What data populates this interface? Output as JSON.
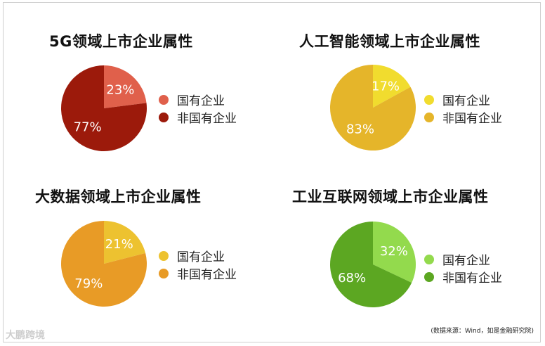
{
  "chart_data": [
    {
      "type": "pie",
      "title": "5G领域上市企业属性",
      "labels": [
        "国有企业",
        "非国有企业"
      ],
      "values": [
        23,
        77
      ],
      "value_labels": [
        "23%",
        "77%"
      ],
      "colors": [
        "#E0604B",
        "#9C1A0B"
      ],
      "legend_position": "right"
    },
    {
      "type": "pie",
      "title": "人工智能领域上市企业属性",
      "labels": [
        "国有企业",
        "非国有企业"
      ],
      "values": [
        17,
        83
      ],
      "value_labels": [
        "17%",
        "83%"
      ],
      "colors": [
        "#F1DC2E",
        "#E5B52A"
      ],
      "legend_position": "right"
    },
    {
      "type": "pie",
      "title": "大数据领域上市企业属性",
      "labels": [
        "国有企业",
        "非国有企业"
      ],
      "values": [
        21,
        79
      ],
      "value_labels": [
        "21%",
        "79%"
      ],
      "colors": [
        "#EDC230",
        "#E89B26"
      ],
      "legend_position": "right"
    },
    {
      "type": "pie",
      "title": "工业互联网领域上市企业属性",
      "labels": [
        "国有企业",
        "非国有企业"
      ],
      "values": [
        32,
        68
      ],
      "value_labels": [
        "32%",
        "68%"
      ],
      "colors": [
        "#93DA4D",
        "#5CA722"
      ],
      "legend_position": "right"
    }
  ],
  "source_note": "(数据来源：Wind，如是金融研究院)",
  "watermark": "大鹏跨境"
}
